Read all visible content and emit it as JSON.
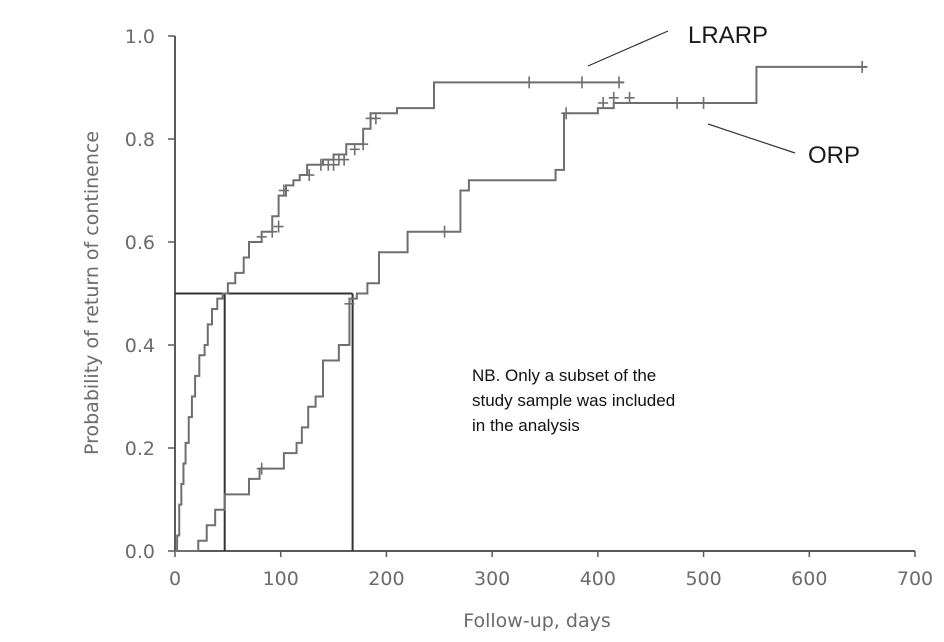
{
  "chart_data": {
    "type": "line",
    "title": "",
    "xlabel": "Follow-up, days",
    "ylabel": "Probability of return of continence",
    "xlim": [
      0,
      700
    ],
    "ylim": [
      0,
      1.0
    ],
    "x_ticks": [
      0,
      100,
      200,
      300,
      400,
      500,
      600,
      700
    ],
    "y_ticks": [
      "0.0",
      "0.2",
      "0.4",
      "0.6",
      "0.8",
      "1.0"
    ],
    "grid": false,
    "series": [
      {
        "name": "LRARP",
        "steps": [
          [
            0,
            0
          ],
          [
            2,
            0.03
          ],
          [
            4,
            0.09
          ],
          [
            6,
            0.13
          ],
          [
            8,
            0.17
          ],
          [
            10,
            0.21
          ],
          [
            13,
            0.26
          ],
          [
            16,
            0.3
          ],
          [
            19,
            0.34
          ],
          [
            23,
            0.38
          ],
          [
            28,
            0.4
          ],
          [
            31,
            0.44
          ],
          [
            35,
            0.47
          ],
          [
            40,
            0.49
          ],
          [
            45,
            0.5
          ],
          [
            50,
            0.52
          ],
          [
            57,
            0.54
          ],
          [
            65,
            0.57
          ],
          [
            70,
            0.6
          ],
          [
            82,
            0.62
          ],
          [
            92,
            0.65
          ],
          [
            98,
            0.69
          ],
          [
            105,
            0.71
          ],
          [
            112,
            0.72
          ],
          [
            118,
            0.73
          ],
          [
            125,
            0.75
          ],
          [
            140,
            0.76
          ],
          [
            150,
            0.77
          ],
          [
            162,
            0.79
          ],
          [
            178,
            0.82
          ],
          [
            185,
            0.85
          ],
          [
            210,
            0.86
          ],
          [
            245,
            0.91
          ],
          [
            325,
            0.91
          ],
          [
            425,
            0.91
          ]
        ],
        "censored": [
          [
            82,
            0.61
          ],
          [
            92,
            0.62
          ],
          [
            98,
            0.63
          ],
          [
            103,
            0.7
          ],
          [
            127,
            0.73
          ],
          [
            138,
            0.75
          ],
          [
            145,
            0.75
          ],
          [
            150,
            0.75
          ],
          [
            155,
            0.76
          ],
          [
            160,
            0.76
          ],
          [
            170,
            0.78
          ],
          [
            178,
            0.79
          ],
          [
            185,
            0.84
          ],
          [
            190,
            0.84
          ],
          [
            335,
            0.91
          ],
          [
            385,
            0.91
          ],
          [
            420,
            0.91
          ]
        ],
        "median_days": 47
      },
      {
        "name": "ORP",
        "steps": [
          [
            0,
            0
          ],
          [
            22,
            0.02
          ],
          [
            30,
            0.05
          ],
          [
            38,
            0.08
          ],
          [
            47,
            0.11
          ],
          [
            70,
            0.14
          ],
          [
            80,
            0.16
          ],
          [
            103,
            0.19
          ],
          [
            115,
            0.21
          ],
          [
            120,
            0.24
          ],
          [
            126,
            0.28
          ],
          [
            133,
            0.3
          ],
          [
            140,
            0.37
          ],
          [
            155,
            0.4
          ],
          [
            165,
            0.49
          ],
          [
            172,
            0.5
          ],
          [
            182,
            0.52
          ],
          [
            193,
            0.58
          ],
          [
            220,
            0.62
          ],
          [
            255,
            0.62
          ],
          [
            270,
            0.7
          ],
          [
            278,
            0.72
          ],
          [
            330,
            0.72
          ],
          [
            360,
            0.74
          ],
          [
            368,
            0.85
          ],
          [
            400,
            0.86
          ],
          [
            415,
            0.87
          ],
          [
            540,
            0.87
          ],
          [
            550,
            0.94
          ],
          [
            655,
            0.94
          ]
        ],
        "censored": [
          [
            82,
            0.16
          ],
          [
            165,
            0.48
          ],
          [
            255,
            0.62
          ],
          [
            370,
            0.85
          ],
          [
            405,
            0.87
          ],
          [
            415,
            0.88
          ],
          [
            430,
            0.88
          ],
          [
            475,
            0.87
          ],
          [
            500,
            0.87
          ],
          [
            650,
            0.94
          ]
        ],
        "median_days": 168
      }
    ],
    "median_probability": 0.5,
    "annotation": [
      "NB. Only a subset of the",
      "study sample was included",
      "in the analysis"
    ]
  }
}
